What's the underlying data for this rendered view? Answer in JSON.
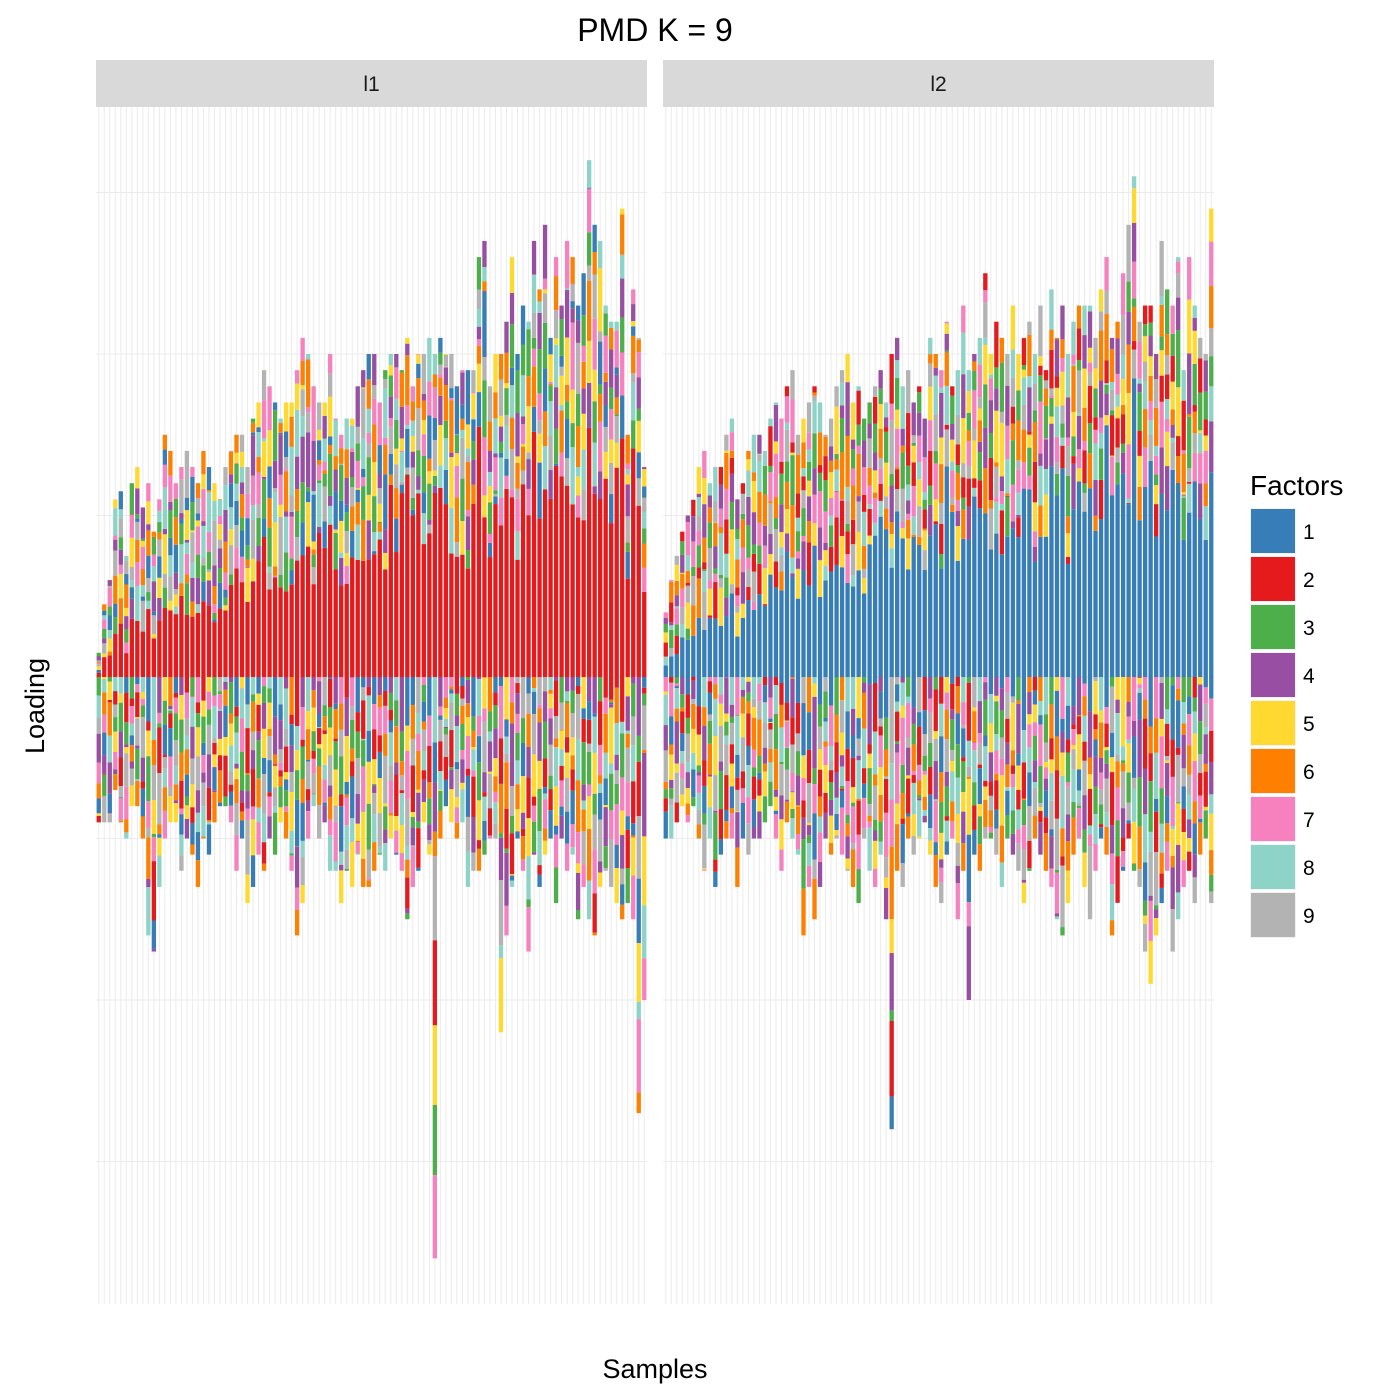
{
  "chart_data": {
    "type": "bar",
    "stacked": true,
    "diverging": true,
    "title": "PMD K = 9",
    "xlabel": "Samples",
    "ylabel": "Loading",
    "x_tick_labels_shown": false,
    "y_tick_labels_shown": false,
    "ylim": [
      -4.0,
      3.6
    ],
    "grid": true,
    "legend": {
      "title": "Factors",
      "position": "right",
      "entries": [
        {
          "label": "1",
          "color": "#377eb8"
        },
        {
          "label": "2",
          "color": "#e41a1c"
        },
        {
          "label": "3",
          "color": "#4daf4a"
        },
        {
          "label": "4",
          "color": "#984ea3"
        },
        {
          "label": "5",
          "color": "#ffd92f"
        },
        {
          "label": "6",
          "color": "#ff7f00"
        },
        {
          "label": "7",
          "color": "#f781bf"
        },
        {
          "label": "8",
          "color": "#8dd3c7"
        },
        {
          "label": "9",
          "color": "#b3b3b3"
        }
      ]
    },
    "panels": [
      {
        "label": "l1",
        "n_samples": 100,
        "dominant_factor": "2",
        "sample_positive_total_approx": [
          0.15,
          0.45,
          0.6,
          1.1,
          1.15,
          0.75,
          1.2,
          1.3,
          1.05,
          1.2,
          0.9,
          1.1,
          1.5,
          1.4,
          1.2,
          1.3,
          1.4,
          1.3,
          1.2,
          1.4,
          1.3,
          1.2,
          1.1,
          1.3,
          1.4,
          1.5,
          1.5,
          1.3,
          1.6,
          1.7,
          1.9,
          1.8,
          1.7,
          1.6,
          1.7,
          1.7,
          1.9,
          2.1,
          2.0,
          1.8,
          1.7,
          1.7,
          2.0,
          1.6,
          1.5,
          1.6,
          1.6,
          1.8,
          1.9,
          2.0,
          2.0,
          1.7,
          1.9,
          2.0,
          2.0,
          1.9,
          2.1,
          1.8,
          2.0,
          2.0,
          2.1,
          2.0,
          2.1,
          2.0,
          2.0,
          1.8,
          1.9,
          1.9,
          1.9,
          2.6,
          2.7,
          1.8,
          2.0,
          2.0,
          2.2,
          2.6,
          2.0,
          2.3,
          2.2,
          2.7,
          2.4,
          2.8,
          2.1,
          2.6,
          2.3,
          2.7,
          2.6,
          2.3,
          2.5,
          3.2,
          2.8,
          2.7,
          2.3,
          2.2,
          2.2,
          2.9,
          1.5,
          2.4,
          2.1,
          1.3
        ],
        "sample_negative_total_approx": [
          -0.9,
          -0.9,
          -0.9,
          -0.7,
          -0.9,
          -1.0,
          -0.8,
          -0.8,
          -1.0,
          -1.6,
          -1.7,
          -1.3,
          -1.0,
          -0.9,
          -0.9,
          -1.2,
          -1.0,
          -1.1,
          -1.3,
          -1.0,
          -1.1,
          -0.9,
          -0.8,
          -0.8,
          -0.9,
          -1.2,
          -1.0,
          -1.4,
          -1.3,
          -1.1,
          -1.2,
          -1.0,
          -1.1,
          -0.9,
          -1.0,
          -1.2,
          -1.6,
          -1.4,
          -1.0,
          -0.8,
          -1.0,
          -0.9,
          -1.2,
          -1.2,
          -1.4,
          -1.2,
          -1.3,
          -1.1,
          -1.3,
          -1.3,
          -1.2,
          -1.1,
          -1.2,
          -1.0,
          -1.1,
          -1.2,
          -1.5,
          -1.3,
          -1.2,
          -0.9,
          -1.1,
          -3.6,
          -1.0,
          -0.8,
          -0.9,
          -1.0,
          -0.9,
          -1.3,
          -1.2,
          -1.2,
          -1.1,
          -1.0,
          -1.0,
          -2.2,
          -1.6,
          -1.3,
          -1.0,
          -1.2,
          -1.7,
          -1.1,
          -1.3,
          -1.1,
          -1.0,
          -1.4,
          -1.0,
          -1.2,
          -1.1,
          -1.5,
          -1.3,
          -1.5,
          -1.6,
          -1.3,
          -1.2,
          -1.3,
          -1.4,
          -1.5,
          -1.4,
          -1.5,
          -2.7,
          -2.0
        ]
      },
      {
        "label": "l2",
        "n_samples": 100,
        "dominant_factor": "1",
        "sample_positive_total_approx": [
          0.4,
          0.6,
          0.75,
          0.9,
          1.0,
          1.1,
          1.3,
          1.4,
          1.2,
          1.3,
          1.3,
          1.5,
          1.6,
          1.1,
          1.2,
          1.4,
          1.5,
          1.5,
          1.4,
          1.6,
          1.7,
          1.6,
          1.8,
          1.9,
          1.5,
          1.6,
          1.7,
          1.8,
          1.7,
          1.5,
          1.6,
          1.8,
          1.9,
          2.0,
          1.7,
          1.8,
          1.6,
          1.7,
          1.8,
          1.9,
          1.7,
          2.0,
          2.1,
          1.8,
          1.9,
          1.7,
          1.8,
          1.6,
          2.1,
          2.0,
          1.9,
          2.2,
          1.8,
          1.9,
          2.3,
          1.9,
          2.0,
          2.1,
          2.5,
          2.0,
          2.2,
          2.1,
          2.0,
          2.3,
          2.0,
          2.1,
          2.2,
          2.0,
          2.3,
          1.9,
          2.4,
          2.1,
          2.3,
          2.0,
          2.2,
          2.3,
          2.3,
          2.3,
          2.1,
          2.4,
          2.6,
          2.1,
          2.2,
          2.5,
          2.8,
          3.1,
          2.2,
          2.3,
          2.3,
          2.0,
          2.7,
          2.4,
          2.3,
          2.6,
          1.9,
          2.6,
          2.3,
          2.1,
          2.0,
          2.9
        ],
        "sample_negative_total_approx": [
          -1.0,
          -1.0,
          -0.9,
          -0.8,
          -0.9,
          -0.8,
          -1.0,
          -1.2,
          -1.0,
          -1.3,
          -1.1,
          -1.0,
          -1.0,
          -1.3,
          -1.0,
          -1.1,
          -1.0,
          -1.0,
          -0.9,
          -0.8,
          -1.0,
          -1.2,
          -0.9,
          -1.0,
          -1.1,
          -1.6,
          -1.3,
          -1.5,
          -1.3,
          -1.0,
          -1.1,
          -1.0,
          -1.1,
          -1.2,
          -1.3,
          -1.4,
          -1.0,
          -1.2,
          -1.3,
          -1.1,
          -1.5,
          -2.8,
          -1.2,
          -1.3,
          -1.0,
          -1.1,
          -1.0,
          -0.9,
          -1.1,
          -1.3,
          -1.4,
          -1.1,
          -1.0,
          -1.5,
          -1.2,
          -2.0,
          -1.1,
          -1.2,
          -1.0,
          -1.0,
          -1.1,
          -1.3,
          -1.0,
          -1.1,
          -1.2,
          -1.4,
          -1.2,
          -1.0,
          -1.1,
          -1.2,
          -1.3,
          -1.5,
          -1.6,
          -1.4,
          -1.1,
          -1.0,
          -1.3,
          -1.5,
          -1.2,
          -1.0,
          -1.1,
          -1.6,
          -1.4,
          -1.2,
          -1.0,
          -1.2,
          -1.3,
          -1.7,
          -1.9,
          -1.6,
          -1.4,
          -1.2,
          -1.7,
          -1.5,
          -1.3,
          -1.2,
          -1.4,
          -1.1,
          -1.0,
          -1.4
        ]
      }
    ]
  }
}
